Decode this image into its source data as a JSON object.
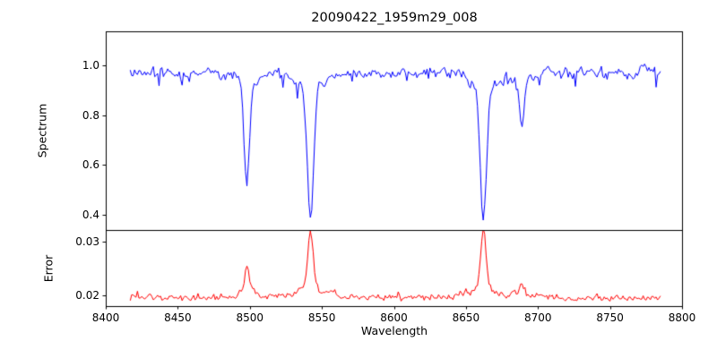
{
  "figure": {
    "title": "20090422_1959m29_008",
    "xlabel": "Wavelength",
    "background": "#ffffff",
    "frame_color": "#000000"
  },
  "xticks": [
    {
      "value": 8400,
      "label": "8400"
    },
    {
      "value": 8450,
      "label": "8450"
    },
    {
      "value": 8500,
      "label": "8500"
    },
    {
      "value": 8550,
      "label": "8550"
    },
    {
      "value": 8600,
      "label": "8600"
    },
    {
      "value": 8650,
      "label": "8650"
    },
    {
      "value": 8700,
      "label": "8700"
    },
    {
      "value": 8750,
      "label": "8750"
    },
    {
      "value": 8800,
      "label": "8800"
    }
  ],
  "chart_data": [
    {
      "type": "line",
      "panel": "spectrum",
      "ylabel": "Spectrum",
      "color": "#0000ff",
      "line_width": 1,
      "xlim": [
        8400,
        8800
      ],
      "ylim": [
        0.34,
        1.135
      ],
      "yticks": [
        {
          "value": 1.0,
          "label": "1.0"
        },
        {
          "value": 0.8,
          "label": "0.8"
        },
        {
          "value": 0.6,
          "label": "0.6"
        },
        {
          "value": 0.4,
          "label": "0.4"
        }
      ],
      "x_start": 8417,
      "x_end": 8785,
      "x_step": 1,
      "continuum": 0.97,
      "noise_sigma": 0.013,
      "seed": 20090422,
      "absorption_lines": [
        {
          "center": 8498.0,
          "depth": 0.44,
          "core_width": 1.7,
          "wing_width": 5.0
        },
        {
          "center": 8542.1,
          "depth": 0.6,
          "core_width": 2.1,
          "wing_width": 7.0
        },
        {
          "center": 8662.1,
          "depth": 0.59,
          "core_width": 2.1,
          "wing_width": 7.0
        },
        {
          "center": 8688.6,
          "depth": 0.2,
          "core_width": 1.5,
          "wing_width": 4.0
        }
      ]
    },
    {
      "type": "line",
      "panel": "error",
      "ylabel": "Error",
      "color": "#ff0000",
      "line_width": 1,
      "xlim": [
        8400,
        8800
      ],
      "ylim": [
        0.018,
        0.0322
      ],
      "yticks": [
        {
          "value": 0.03,
          "label": "0.03"
        },
        {
          "value": 0.02,
          "label": "0.02"
        }
      ],
      "x_start": 8417,
      "x_end": 8785,
      "x_step": 1,
      "baseline": 0.0195,
      "noise_sigma": 0.0004,
      "seed": 1959,
      "peaks": [
        {
          "center": 8498.0,
          "height": 0.0057,
          "width": 1.6
        },
        {
          "center": 8542.1,
          "height": 0.0128,
          "width": 1.8
        },
        {
          "center": 8662.1,
          "height": 0.0125,
          "width": 1.8
        },
        {
          "center": 8688.6,
          "height": 0.003,
          "width": 1.4
        }
      ]
    }
  ]
}
